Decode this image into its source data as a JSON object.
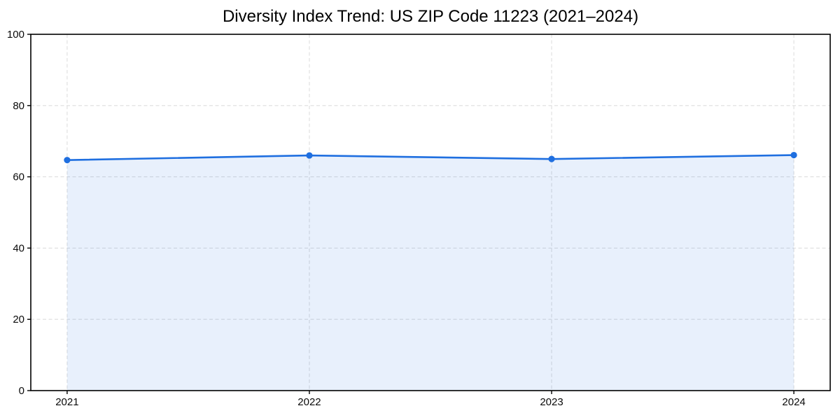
{
  "page": {
    "background_color": "#ffffff"
  },
  "chart_data": {
    "type": "area",
    "title": "Diversity Index Trend: US ZIP Code 11223 (2021–2024)",
    "x": [
      2021,
      2022,
      2023,
      2024
    ],
    "categories": [
      "2021",
      "2022",
      "2023",
      "2024"
    ],
    "series": [
      {
        "name": "Diversity Index",
        "values": [
          64.7,
          66.0,
          65.0,
          66.1
        ]
      }
    ],
    "xlabel": "",
    "ylabel": "",
    "ylim": [
      0,
      100
    ],
    "yticks": [
      0,
      20,
      40,
      60,
      80,
      100
    ],
    "xticks": [
      2021,
      2022,
      2023,
      2024
    ],
    "grid": true,
    "grid_linestyle": "dashed",
    "legend_position": "none",
    "marker": "circle",
    "colors": {
      "line": "#1f6fe0",
      "marker": "#1f6fe0",
      "area_fill": "#1f6fe0",
      "area_fill_opacity": 0.1,
      "grid": "#dedede",
      "axis_frame": "#000000",
      "tick_mark": "#000000",
      "tick_text": "#0a0a0a",
      "title_text": "#000000",
      "background": "#ffffff"
    }
  }
}
